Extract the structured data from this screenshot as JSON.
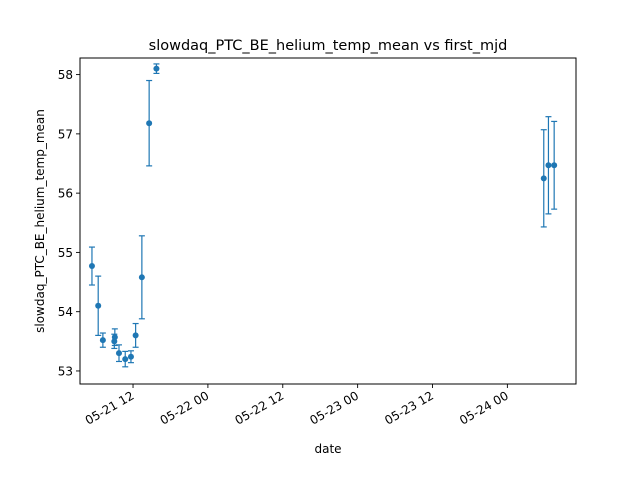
{
  "chart_data": {
    "type": "scatter",
    "title": "slowdaq_PTC_BE_helium_temp_mean vs first_mjd",
    "xlabel": "date",
    "ylabel": "slowdaq_PTC_BE_helium_temp_mean",
    "x_axis_type": "date",
    "xlim": [
      "2021-05-21 03:30",
      "2021-05-24 11:00"
    ],
    "ylim": [
      52.78,
      58.28
    ],
    "x_ticks": [
      {
        "value": "2021-05-21 12:00",
        "label": "05-21 12"
      },
      {
        "value": "2021-05-22 00:00",
        "label": "05-22 00"
      },
      {
        "value": "2021-05-22 12:00",
        "label": "05-22 12"
      },
      {
        "value": "2021-05-23 00:00",
        "label": "05-23 00"
      },
      {
        "value": "2021-05-23 12:00",
        "label": "05-23 12"
      },
      {
        "value": "2021-05-24 00:00",
        "label": "05-24 00"
      }
    ],
    "y_ticks": [
      53,
      54,
      55,
      56,
      57,
      58
    ],
    "grid": false,
    "legend": "none",
    "series_color": "#1f77b4",
    "points": [
      {
        "x": "2021-05-21 05:25",
        "y": 54.77,
        "err": 0.32
      },
      {
        "x": "2021-05-21 06:25",
        "y": 54.1,
        "err": 0.5
      },
      {
        "x": "2021-05-21 07:10",
        "y": 53.52,
        "err": 0.12
      },
      {
        "x": "2021-05-21 09:00",
        "y": 53.5,
        "err": 0.12
      },
      {
        "x": "2021-05-21 09:05",
        "y": 53.57,
        "err": 0.14
      },
      {
        "x": "2021-05-21 09:45",
        "y": 53.3,
        "err": 0.14
      },
      {
        "x": "2021-05-21 10:45",
        "y": 53.2,
        "err": 0.13
      },
      {
        "x": "2021-05-21 11:40",
        "y": 53.24,
        "err": 0.1
      },
      {
        "x": "2021-05-21 12:25",
        "y": 53.6,
        "err": 0.2
      },
      {
        "x": "2021-05-21 13:25",
        "y": 54.58,
        "err": 0.7
      },
      {
        "x": "2021-05-21 14:35",
        "y": 57.18,
        "err": 0.72
      },
      {
        "x": "2021-05-21 15:45",
        "y": 58.1,
        "err": 0.08
      },
      {
        "x": "2021-05-24 05:50",
        "y": 56.25,
        "err": 0.82
      },
      {
        "x": "2021-05-24 06:35",
        "y": 56.47,
        "err": 0.82
      },
      {
        "x": "2021-05-24 07:30",
        "y": 56.47,
        "err": 0.74
      }
    ]
  }
}
